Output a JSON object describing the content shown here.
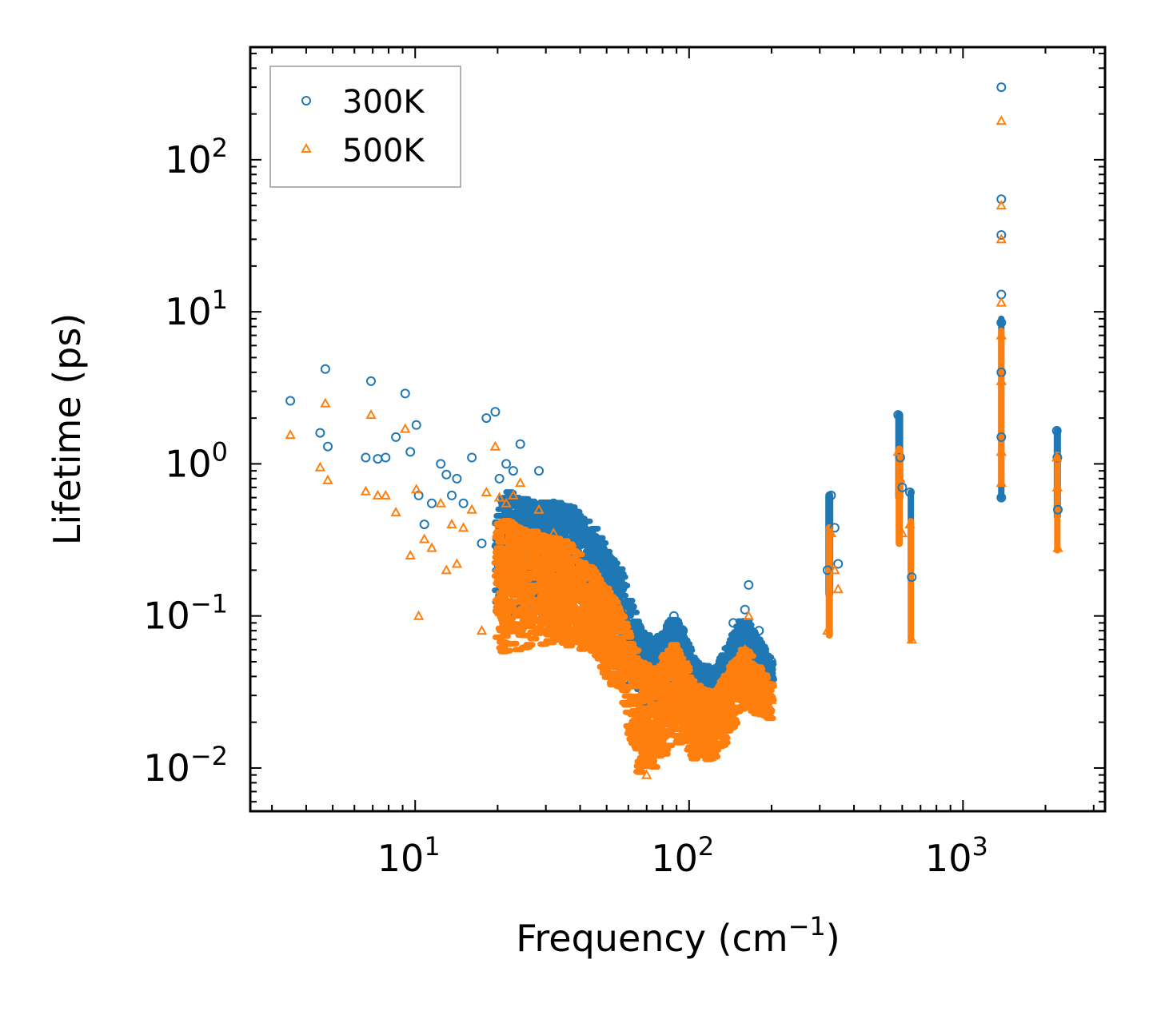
{
  "chart_data": {
    "type": "scatter",
    "xscale": "log",
    "yscale": "log",
    "xlim": [
      2.5,
      3300
    ],
    "ylim": [
      0.0052,
      550
    ],
    "xlabel": "Frequency (cm",
    "xlabel_exp": "−1",
    "xlabel_close": ")",
    "ylabel": "Lifetime (ps)",
    "xticks": [
      {
        "value": 10,
        "base": "10",
        "exp": "1"
      },
      {
        "value": 100,
        "base": "10",
        "exp": "2"
      },
      {
        "value": 1000,
        "base": "10",
        "exp": "3"
      }
    ],
    "yticks": [
      {
        "value": 0.01,
        "base": "10",
        "exp": "−2"
      },
      {
        "value": 0.1,
        "base": "10",
        "exp": "−1"
      },
      {
        "value": 1,
        "base": "10",
        "exp": "0"
      },
      {
        "value": 10,
        "base": "10",
        "exp": "1"
      },
      {
        "value": 100,
        "base": "10",
        "exp": "2"
      }
    ],
    "legend": {
      "position": "top-left"
    },
    "series": [
      {
        "name": "300K",
        "marker": "circle",
        "color": "#1f77b4",
        "points": [
          [
            3.5,
            2.6
          ],
          [
            4.5,
            1.6
          ],
          [
            4.7,
            4.2
          ],
          [
            4.8,
            1.3
          ],
          [
            6.6,
            1.1
          ],
          [
            6.9,
            3.5
          ],
          [
            7.3,
            1.08
          ],
          [
            7.8,
            1.1
          ],
          [
            8.5,
            1.5
          ],
          [
            9.2,
            2.9
          ],
          [
            9.6,
            1.2
          ],
          [
            10.1,
            1.8
          ],
          [
            10.3,
            0.62
          ],
          [
            10.8,
            0.4
          ],
          [
            11.5,
            0.55
          ],
          [
            12.4,
            1.0
          ],
          [
            13.0,
            0.85
          ],
          [
            13.6,
            0.62
          ],
          [
            14.2,
            0.8
          ],
          [
            15.0,
            0.55
          ],
          [
            16.1,
            1.1
          ],
          [
            17.5,
            0.3
          ],
          [
            18.2,
            2.0
          ],
          [
            19.6,
            2.2
          ],
          [
            20.3,
            0.8
          ],
          [
            21.5,
            1.0
          ],
          [
            22.8,
            0.9
          ],
          [
            24.2,
            1.35
          ],
          [
            26.0,
            0.55
          ],
          [
            28.3,
            0.9
          ],
          [
            32.0,
            0.55
          ],
          [
            36.0,
            0.45
          ],
          [
            40.0,
            0.4
          ],
          [
            45.0,
            0.33
          ],
          [
            50.0,
            0.25
          ],
          [
            55.0,
            0.18
          ],
          [
            60.0,
            0.11
          ],
          [
            65.0,
            0.08
          ],
          [
            70.0,
            0.065
          ],
          [
            80.0,
            0.075
          ],
          [
            88.0,
            0.1
          ],
          [
            95.0,
            0.08
          ],
          [
            105.0,
            0.05
          ],
          [
            115.0,
            0.045
          ],
          [
            130.0,
            0.05
          ],
          [
            145.0,
            0.09
          ],
          [
            160.0,
            0.11
          ],
          [
            165.0,
            0.16
          ],
          [
            180.0,
            0.08
          ],
          [
            200.0,
            0.05
          ],
          [
            320.0,
            0.2
          ],
          [
            330.0,
            0.62
          ],
          [
            340.0,
            0.38
          ],
          [
            350.0,
            0.22
          ],
          [
            580.0,
            2.1
          ],
          [
            590.0,
            1.1
          ],
          [
            600.0,
            0.7
          ],
          [
            640.0,
            0.65
          ],
          [
            650.0,
            0.18
          ],
          [
            1380.0,
            300.0
          ],
          [
            1380.0,
            55.0
          ],
          [
            1380.0,
            32.0
          ],
          [
            1380.0,
            13.0
          ],
          [
            1380.0,
            8.5
          ],
          [
            1380.0,
            4.0
          ],
          [
            1380.0,
            1.5
          ],
          [
            1380.0,
            0.6
          ],
          [
            2200.0,
            1.65
          ],
          [
            2210.0,
            1.1
          ],
          [
            2220.0,
            0.5
          ]
        ]
      },
      {
        "name": "500K",
        "marker": "triangle",
        "color": "#ff7f0e",
        "points": [
          [
            3.5,
            1.55
          ],
          [
            4.5,
            0.95
          ],
          [
            4.7,
            2.5
          ],
          [
            4.8,
            0.78
          ],
          [
            6.6,
            0.66
          ],
          [
            6.9,
            2.1
          ],
          [
            7.3,
            0.62
          ],
          [
            7.8,
            0.62
          ],
          [
            8.5,
            0.48
          ],
          [
            9.2,
            1.7
          ],
          [
            9.6,
            0.25
          ],
          [
            10.1,
            0.68
          ],
          [
            10.3,
            0.1
          ],
          [
            10.8,
            0.32
          ],
          [
            11.5,
            0.28
          ],
          [
            12.4,
            0.55
          ],
          [
            13.0,
            0.2
          ],
          [
            13.6,
            0.4
          ],
          [
            14.2,
            0.22
          ],
          [
            15.0,
            0.38
          ],
          [
            16.1,
            0.5
          ],
          [
            17.5,
            0.08
          ],
          [
            18.2,
            0.65
          ],
          [
            19.6,
            1.3
          ],
          [
            20.3,
            0.6
          ],
          [
            21.5,
            0.55
          ],
          [
            22.8,
            0.62
          ],
          [
            24.2,
            0.75
          ],
          [
            26.0,
            0.35
          ],
          [
            28.3,
            0.5
          ],
          [
            32.0,
            0.35
          ],
          [
            36.0,
            0.28
          ],
          [
            40.0,
            0.22
          ],
          [
            45.0,
            0.2
          ],
          [
            50.0,
            0.15
          ],
          [
            55.0,
            0.12
          ],
          [
            60.0,
            0.06
          ],
          [
            65.0,
            0.035
          ],
          [
            70.0,
            0.009
          ],
          [
            80.0,
            0.03
          ],
          [
            88.0,
            0.05
          ],
          [
            95.0,
            0.035
          ],
          [
            105.0,
            0.012
          ],
          [
            115.0,
            0.02
          ],
          [
            130.0,
            0.025
          ],
          [
            145.0,
            0.04
          ],
          [
            160.0,
            0.06
          ],
          [
            165.0,
            0.1
          ],
          [
            180.0,
            0.04
          ],
          [
            200.0,
            0.028
          ],
          [
            320.0,
            0.08
          ],
          [
            330.0,
            0.35
          ],
          [
            340.0,
            0.2
          ],
          [
            350.0,
            0.15
          ],
          [
            580.0,
            1.2
          ],
          [
            590.0,
            0.8
          ],
          [
            600.0,
            0.35
          ],
          [
            640.0,
            0.4
          ],
          [
            650.0,
            0.07
          ],
          [
            1380.0,
            180.0
          ],
          [
            1380.0,
            50.0
          ],
          [
            1380.0,
            30.0
          ],
          [
            1380.0,
            11.5
          ],
          [
            1380.0,
            7.0
          ],
          [
            1380.0,
            3.5
          ],
          [
            1380.0,
            1.2
          ],
          [
            1380.0,
            0.75
          ],
          [
            2200.0,
            1.1
          ],
          [
            2210.0,
            0.7
          ],
          [
            2220.0,
            0.28
          ]
        ]
      }
    ]
  }
}
